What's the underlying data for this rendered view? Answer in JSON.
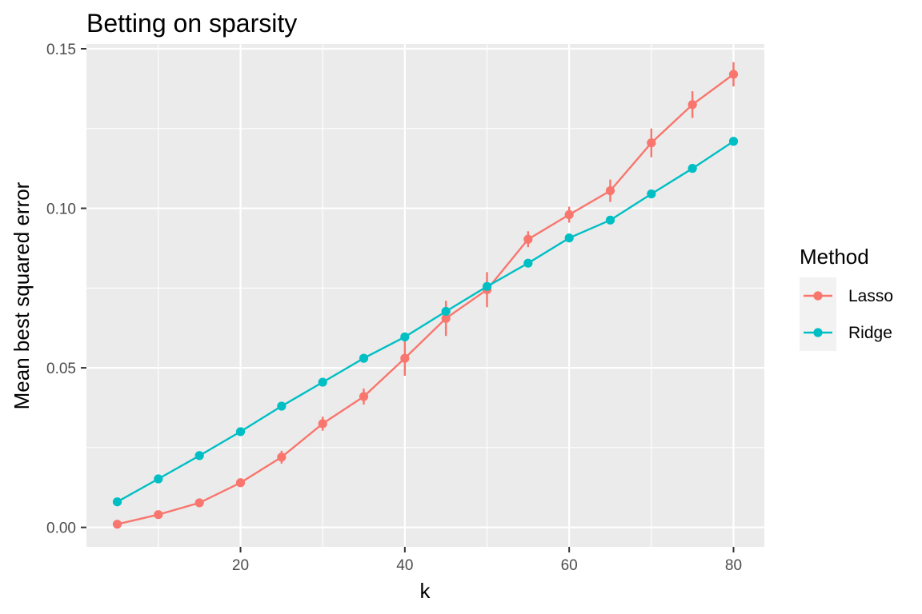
{
  "chart_data": {
    "type": "line",
    "title": "Betting on sparsity",
    "xlabel": "k",
    "ylabel": "Mean best squared error",
    "xlim": [
      1.25,
      83.75
    ],
    "ylim": [
      -0.0061,
      0.1515
    ],
    "x_ticks": [
      20,
      40,
      60,
      80
    ],
    "x_tick_labels": [
      "20",
      "40",
      "60",
      "80"
    ],
    "y_ticks": [
      0.0,
      0.05,
      0.1,
      0.15
    ],
    "y_tick_labels": [
      "0.00",
      "0.05",
      "0.10",
      "0.15"
    ],
    "grid": true,
    "legend": {
      "title": "Method",
      "position": "right"
    },
    "x": [
      5,
      10,
      15,
      20,
      25,
      30,
      35,
      40,
      45,
      50,
      55,
      60,
      65,
      70,
      75,
      80
    ],
    "series": [
      {
        "name": "Lasso",
        "color": "#f8766d",
        "values": [
          0.001,
          0.004,
          0.0077,
          0.014,
          0.022,
          0.0325,
          0.041,
          0.053,
          0.0655,
          0.0745,
          0.0903,
          0.098,
          0.1055,
          0.1205,
          0.1325,
          0.142
        ],
        "error": [
          0.0002,
          0.0004,
          0.0006,
          0.0008,
          0.002,
          0.0022,
          0.0025,
          0.0055,
          0.0055,
          0.0055,
          0.0025,
          0.0025,
          0.0035,
          0.0045,
          0.0042,
          0.0038
        ]
      },
      {
        "name": "Ridge",
        "color": "#00bfc4",
        "values": [
          0.008,
          0.0152,
          0.0225,
          0.03,
          0.038,
          0.0455,
          0.053,
          0.0597,
          0.0677,
          0.0755,
          0.0828,
          0.0907,
          0.0963,
          0.1045,
          0.1125,
          0.121
        ],
        "error": [
          0.0003,
          0.0003,
          0.0003,
          0.0003,
          0.0003,
          0.0003,
          0.0004,
          0.0004,
          0.0005,
          0.0005,
          0.0005,
          0.0006,
          0.0006,
          0.0007,
          0.0012,
          0.0012
        ]
      }
    ]
  }
}
